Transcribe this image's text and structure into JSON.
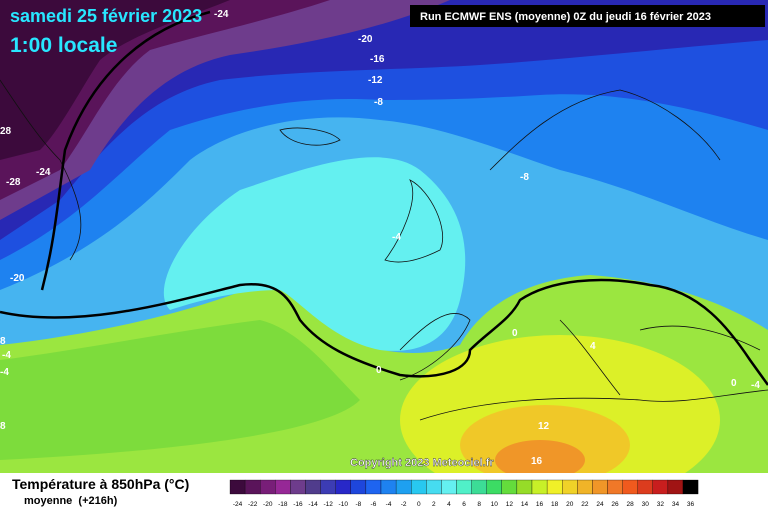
{
  "header": {
    "date": "samedi 25 février 2023",
    "time": "1:00 locale",
    "run": "Run ECMWF ENS (moyenne) 0Z du jeudi 16 février 2023"
  },
  "map": {
    "contour_labels": [
      "-24",
      "-20",
      "-16",
      "-12",
      "-8",
      "28",
      "-28",
      "-24",
      "-8",
      "-4",
      "-20",
      "8",
      "-4",
      "-4",
      "0",
      "0",
      "4",
      "12",
      "16",
      "0",
      "-4",
      "8"
    ],
    "copyright": "Copyright 2023 Meteociel.fr"
  },
  "legend": {
    "title": "Température à 850hPa (°C)",
    "subtitle": "moyenne  (+216h)",
    "labels": [
      -24,
      -22,
      -20,
      -18,
      -16,
      -14,
      -12,
      -10,
      -8,
      -6,
      -4,
      -2,
      0,
      2,
      4,
      6,
      8,
      10,
      12,
      14,
      16,
      18,
      20,
      22,
      24,
      26,
      28,
      30,
      32,
      34,
      36
    ],
    "colors": [
      "#3c0a3c",
      "#5a145a",
      "#781e78",
      "#962896",
      "#6e3c8c",
      "#503c8c",
      "#3c3cb4",
      "#2828c8",
      "#1e46dc",
      "#1e64f0",
      "#1e82f0",
      "#1ea0f0",
      "#28c8f0",
      "#46dcf0",
      "#64f0f0",
      "#50f0c8",
      "#3cdc96",
      "#3cdc64",
      "#64dc3c",
      "#96dc28",
      "#c8f028",
      "#f0f028",
      "#f0d228",
      "#f0b428",
      "#f09628",
      "#f07828",
      "#f05a1e",
      "#dc3c1e",
      "#c81e1e",
      "#a01414",
      "#000000"
    ]
  }
}
